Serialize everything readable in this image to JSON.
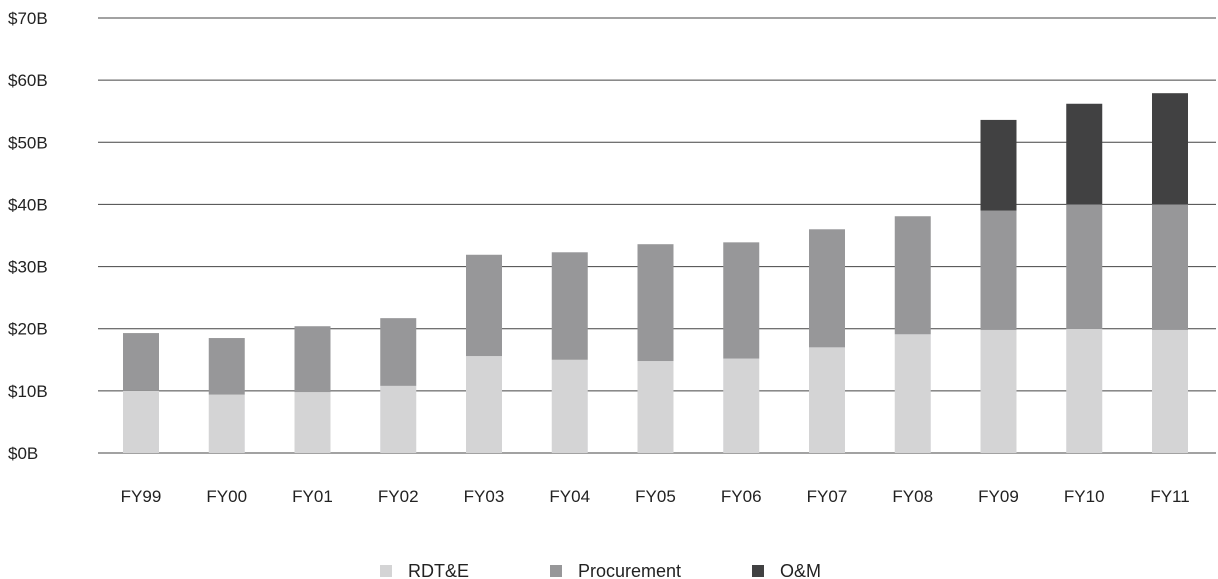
{
  "chart_data": {
    "type": "bar",
    "stacked": true,
    "title": "",
    "xlabel": "",
    "ylabel": "",
    "ylim": [
      0,
      70
    ],
    "y_ticks": [
      0,
      10,
      20,
      30,
      40,
      50,
      60,
      70
    ],
    "y_tick_format": {
      "prefix": "$",
      "suffix": "B"
    },
    "grid": true,
    "legend_position": "bottom",
    "categories": [
      "FY99",
      "FY00",
      "FY01",
      "FY02",
      "FY03",
      "FY04",
      "FY05",
      "FY06",
      "FY07",
      "FY08",
      "FY09",
      "FY10",
      "FY11"
    ],
    "series": [
      {
        "name": "RDT&E",
        "color": "#d4d4d5",
        "values": [
          10.0,
          9.4,
          9.8,
          10.8,
          15.6,
          15.0,
          14.8,
          15.2,
          17.0,
          19.1,
          19.8,
          20.0,
          19.8
        ]
      },
      {
        "name": "Procurement",
        "color": "#979799",
        "values": [
          9.3,
          9.1,
          10.6,
          10.9,
          16.3,
          17.3,
          18.8,
          18.7,
          19.0,
          19.0,
          19.2,
          20.0,
          20.2
        ]
      },
      {
        "name": "O&M",
        "color": "#414142",
        "values": [
          0,
          0,
          0,
          0,
          0,
          0,
          0,
          0,
          0,
          0,
          14.6,
          16.2,
          17.9
        ]
      }
    ]
  }
}
